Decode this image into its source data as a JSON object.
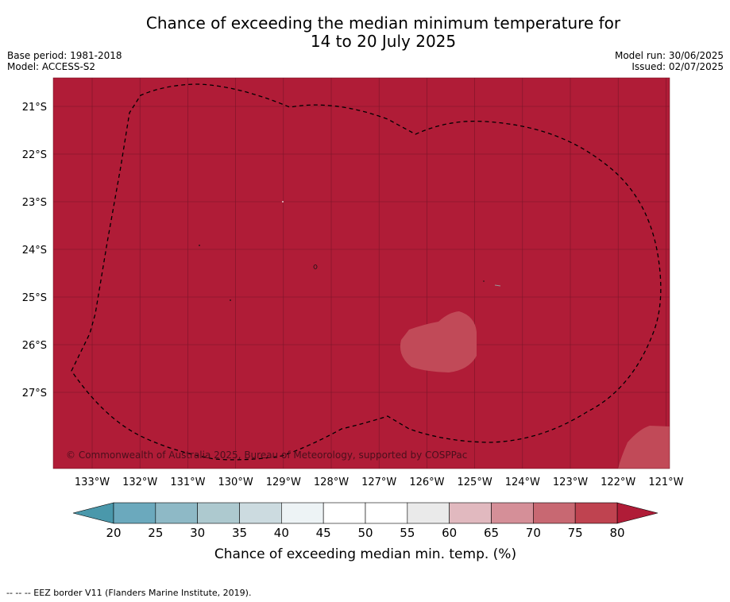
{
  "title": {
    "line1": "Chance of exceeding the median minimum temperature for",
    "line2": "14 to 20 July 2025"
  },
  "meta_left": {
    "base_period": "Base period: 1981-2018",
    "model": "Model: ACCESS-S2"
  },
  "meta_right": {
    "model_run": "Model run: 30/06/2025",
    "issued": "Issued: 02/07/2025"
  },
  "map": {
    "background_color": "#b01c37",
    "copyright": "© Commonwealth of Australia 2025, Bureau of Meteorology, supported by COSPPac",
    "lat_labels": [
      "21°S",
      "22°S",
      "23°S",
      "24°S",
      "25°S",
      "26°S",
      "27°S"
    ],
    "lon_labels": [
      "133°W",
      "132°W",
      "131°W",
      "130°W",
      "129°W",
      "128°W",
      "127°W",
      "126°W",
      "125°W",
      "124°W",
      "123°W",
      "122°W",
      "121°W"
    ]
  },
  "colorbar": {
    "ticks": [
      "20",
      "25",
      "30",
      "35",
      "40",
      "45",
      "50",
      "55",
      "60",
      "65",
      "70",
      "75",
      "80"
    ],
    "colors": [
      "#6ba9bd",
      "#8eb9c6",
      "#adc9cf",
      "#ccdbe0",
      "#edf3f5",
      "#ffffff",
      "#ffffff",
      "#eaeaea",
      "#e1b9bf",
      "#d58f98",
      "#c86872",
      "#bf4350"
    ],
    "under_color": "#4a98ab",
    "over_color": "#b01c37",
    "label": "Chance of exceeding median min. temp. (%)"
  },
  "footer": "--  --  -- EEZ border V11 (Flanders Marine Institute, 2019)."
}
